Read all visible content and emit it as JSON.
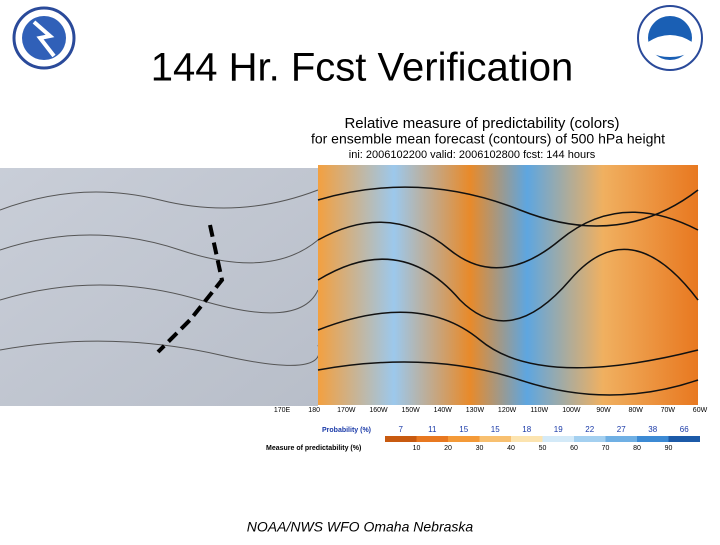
{
  "title": "144 Hr. Fcst Verification",
  "footer": "NOAA/NWS WFO Omaha Nebraska",
  "map": {
    "title_lines": [
      "Relative measure of predictability (colors)",
      "for ensemble mean forecast (contours) of 500 hPa height",
      "ini: 2006102200 valid: 2006102800 fcst: 144 hours"
    ],
    "longitudes": [
      "170E",
      "180",
      "170W",
      "160W",
      "150W",
      "140W",
      "130W",
      "120W",
      "110W",
      "100W",
      "90W",
      "80W",
      "70W",
      "60W"
    ],
    "probability_label": "Probability (%)",
    "probabilities": [
      "7",
      "11",
      "15",
      "15",
      "18",
      "19",
      "22",
      "27",
      "38",
      "66"
    ],
    "measure_label": "Measure of predictability (%)",
    "measures": [
      "10",
      "20",
      "30",
      "40",
      "50",
      "60",
      "70",
      "80",
      "90"
    ]
  }
}
